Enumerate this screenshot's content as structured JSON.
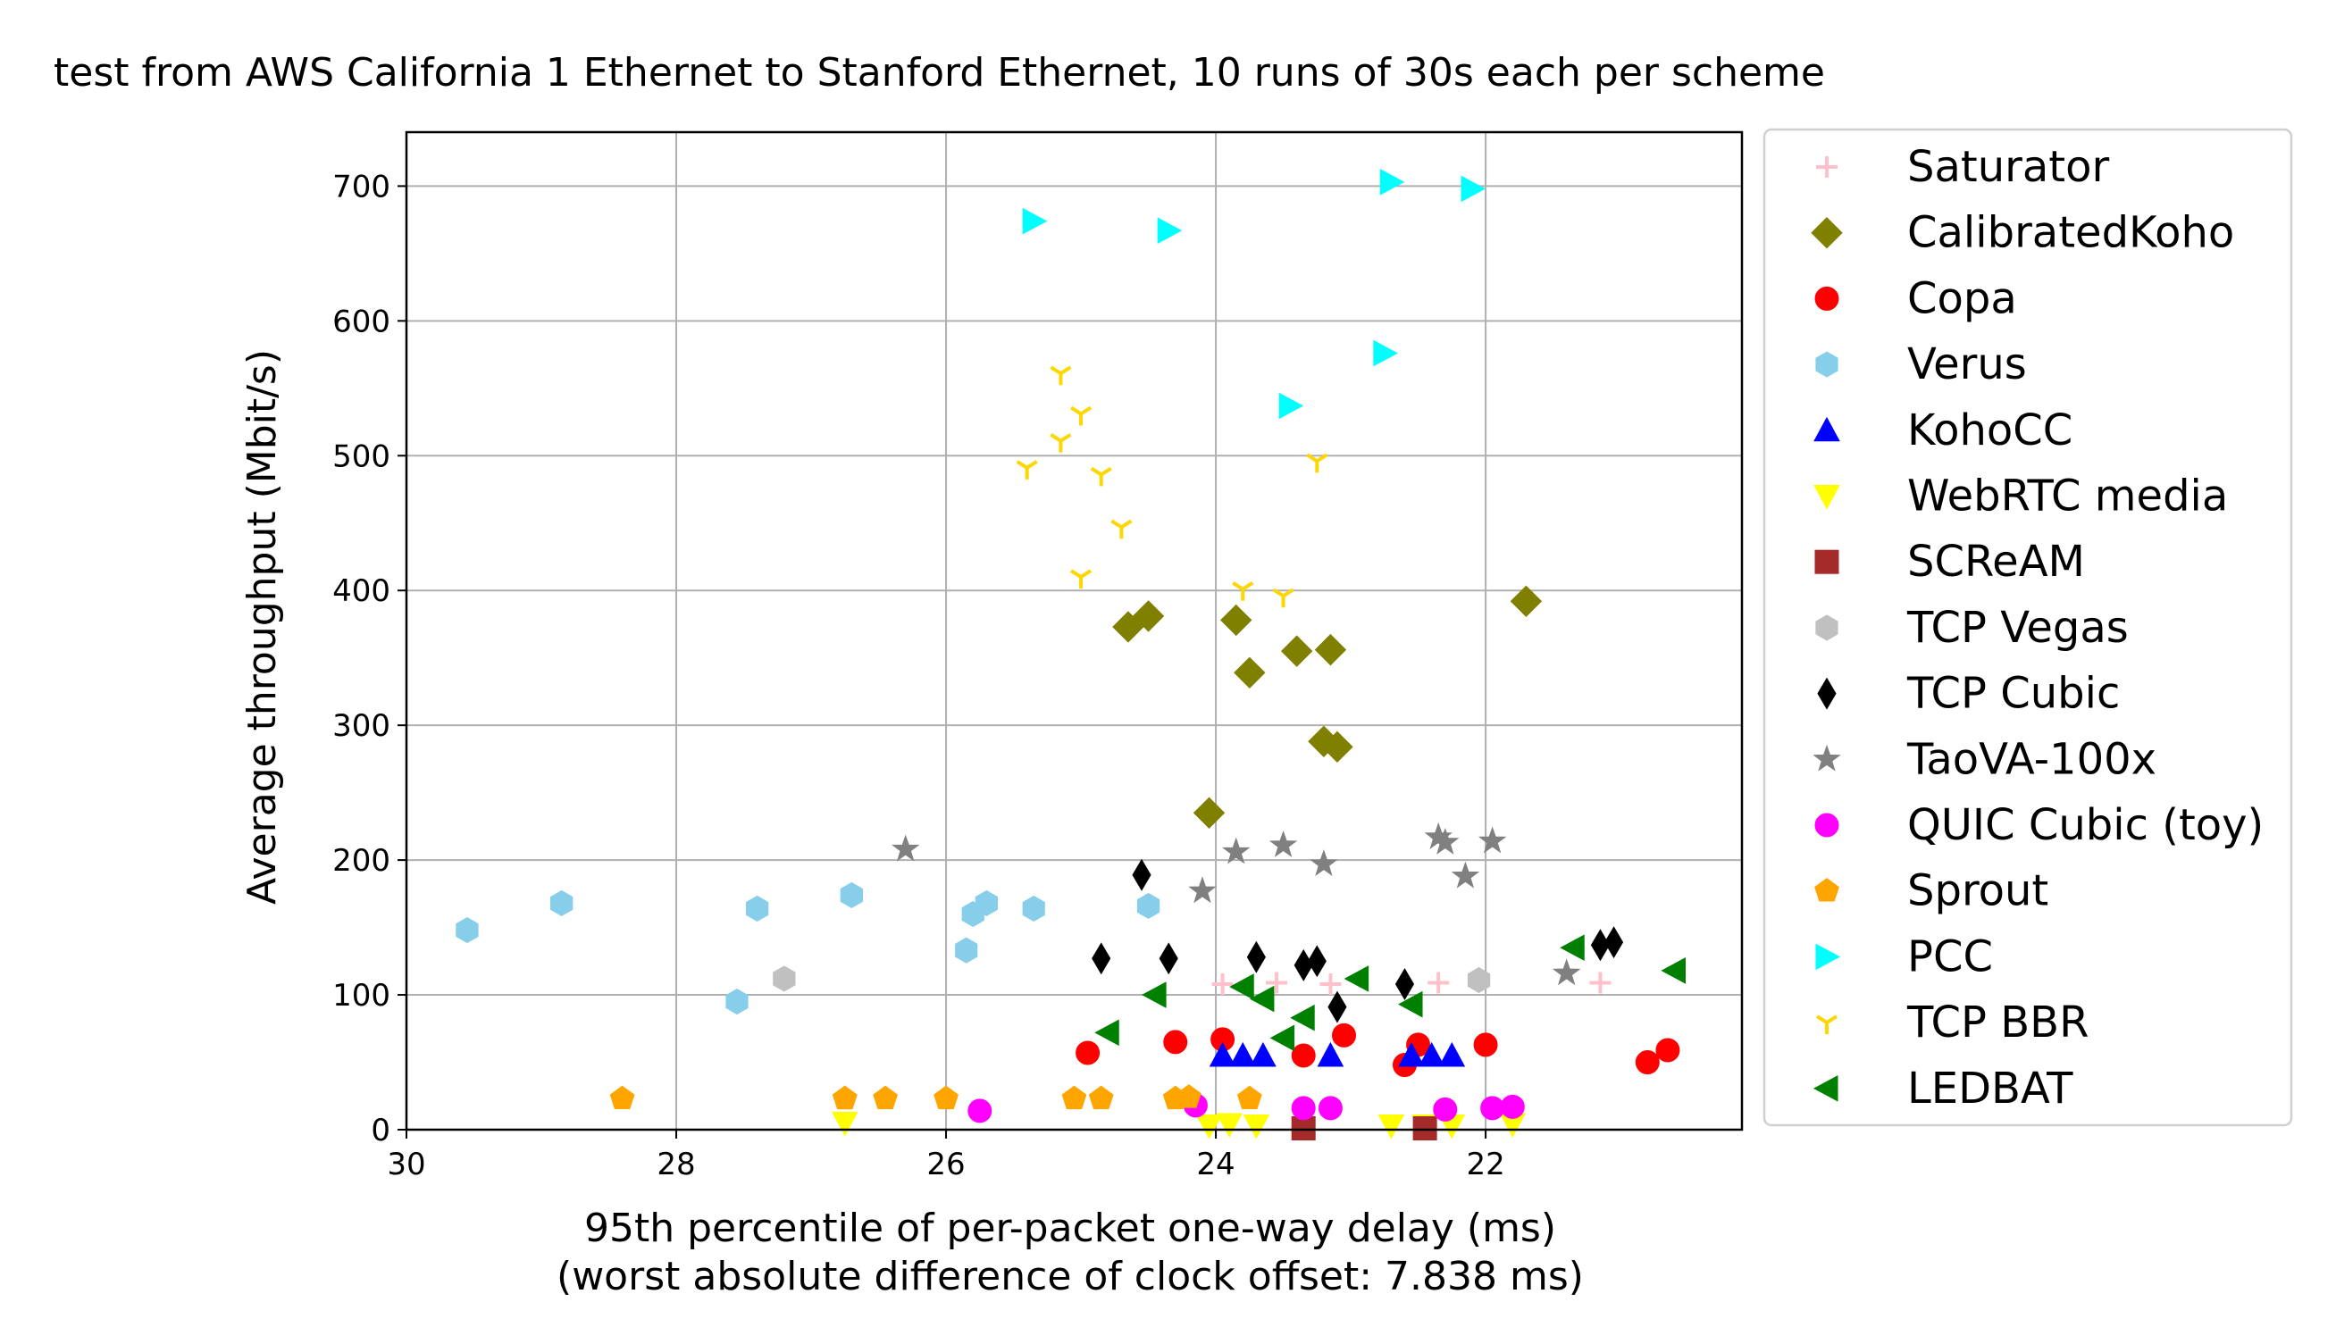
{
  "chart_data": {
    "type": "scatter",
    "title": "test from AWS California 1 Ethernet to Stanford Ethernet, 10 runs of 30s each per scheme",
    "xlabel": "95th percentile of per-packet one-way delay (ms)",
    "xlabel2": "(worst absolute difference of clock offset: 7.838 ms)",
    "ylabel": "Average throughput (Mbit/s)",
    "xlim": [
      30.0,
      20.1
    ],
    "ylim": [
      0,
      740
    ],
    "x_inverted": true,
    "grid": true,
    "legend_position": "outside-right",
    "x_ticks": [
      30,
      28,
      26,
      24,
      22
    ],
    "y_ticks": [
      0,
      100,
      200,
      300,
      400,
      500,
      600,
      700
    ],
    "series": [
      {
        "name": "Saturator",
        "marker": "plus",
        "color": "#ffc0cb",
        "points": [
          [
            23.95,
            108
          ],
          [
            23.55,
            109
          ],
          [
            23.15,
            108
          ],
          [
            22.35,
            109
          ],
          [
            21.15,
            109
          ]
        ]
      },
      {
        "name": "CalibratedKoho",
        "marker": "diamond",
        "color": "#808000",
        "points": [
          [
            24.65,
            373
          ],
          [
            24.5,
            381
          ],
          [
            23.85,
            378
          ],
          [
            23.75,
            339
          ],
          [
            23.4,
            355
          ],
          [
            23.15,
            356
          ],
          [
            23.2,
            288
          ],
          [
            23.1,
            284
          ],
          [
            24.05,
            235
          ],
          [
            21.7,
            392
          ]
        ]
      },
      {
        "name": "Copa",
        "marker": "circle",
        "color": "#ff0000",
        "points": [
          [
            24.95,
            57
          ],
          [
            24.3,
            65
          ],
          [
            23.95,
            67
          ],
          [
            23.35,
            55
          ],
          [
            23.05,
            70
          ],
          [
            22.6,
            48
          ],
          [
            22.5,
            63
          ],
          [
            22.0,
            63
          ],
          [
            20.8,
            50
          ],
          [
            20.65,
            59
          ]
        ]
      },
      {
        "name": "Verus",
        "marker": "hexagon",
        "color": "#87ceeb",
        "points": [
          [
            29.55,
            148
          ],
          [
            28.85,
            168
          ],
          [
            27.55,
            95
          ],
          [
            27.4,
            164
          ],
          [
            26.7,
            174
          ],
          [
            25.85,
            133
          ],
          [
            25.8,
            160
          ],
          [
            25.7,
            168
          ],
          [
            25.35,
            164
          ],
          [
            24.5,
            166
          ]
        ]
      },
      {
        "name": "KohoCC",
        "marker": "triangle-up",
        "color": "#0000ff",
        "points": [
          [
            23.95,
            55
          ],
          [
            23.8,
            55
          ],
          [
            23.65,
            55
          ],
          [
            23.15,
            55
          ],
          [
            22.55,
            55
          ],
          [
            22.4,
            55
          ],
          [
            22.25,
            55
          ]
        ]
      },
      {
        "name": "WebRTC media",
        "marker": "triangle-down",
        "color": "#ffff00",
        "points": [
          [
            26.75,
            5
          ],
          [
            24.05,
            3
          ],
          [
            23.9,
            4
          ],
          [
            23.7,
            3
          ],
          [
            22.7,
            3
          ],
          [
            22.45,
            3
          ],
          [
            22.25,
            3
          ],
          [
            21.8,
            4
          ]
        ]
      },
      {
        "name": "SCReAM",
        "marker": "square",
        "color": "#a52a2a",
        "points": [
          [
            23.35,
            1
          ],
          [
            22.45,
            1
          ]
        ]
      },
      {
        "name": "TCP Vegas",
        "marker": "hexagon",
        "color": "#c0c0c0",
        "points": [
          [
            27.2,
            112
          ],
          [
            22.05,
            111
          ]
        ]
      },
      {
        "name": "TCP Cubic",
        "marker": "thin-diamond",
        "color": "#000000",
        "points": [
          [
            24.85,
            127
          ],
          [
            24.55,
            189
          ],
          [
            24.35,
            127
          ],
          [
            23.7,
            128
          ],
          [
            23.35,
            122
          ],
          [
            23.25,
            125
          ],
          [
            23.1,
            91
          ],
          [
            22.6,
            108
          ],
          [
            21.15,
            137
          ],
          [
            21.05,
            139
          ]
        ]
      },
      {
        "name": "TaoVA-100x",
        "marker": "star",
        "color": "#808080",
        "points": [
          [
            26.3,
            208
          ],
          [
            24.1,
            177
          ],
          [
            23.85,
            206
          ],
          [
            23.5,
            211
          ],
          [
            23.2,
            197
          ],
          [
            22.35,
            217
          ],
          [
            22.3,
            213
          ],
          [
            22.15,
            188
          ],
          [
            21.95,
            214
          ],
          [
            21.4,
            116
          ]
        ]
      },
      {
        "name": "QUIC Cubic (toy)",
        "marker": "circle",
        "color": "#ff00ff",
        "points": [
          [
            25.75,
            14
          ],
          [
            24.15,
            18
          ],
          [
            23.35,
            16
          ],
          [
            23.15,
            16
          ],
          [
            22.3,
            15
          ],
          [
            21.95,
            16
          ],
          [
            21.8,
            17
          ]
        ]
      },
      {
        "name": "Sprout",
        "marker": "pentagon",
        "color": "#ffa500",
        "points": [
          [
            28.4,
            23
          ],
          [
            26.75,
            23
          ],
          [
            26.75,
            23
          ],
          [
            26.45,
            23
          ],
          [
            26.0,
            23
          ],
          [
            25.05,
            23
          ],
          [
            24.85,
            23
          ],
          [
            24.3,
            23
          ],
          [
            24.2,
            24
          ],
          [
            23.75,
            23
          ]
        ]
      },
      {
        "name": "PCC",
        "marker": "triangle-right",
        "color": "#00ffff",
        "points": [
          [
            25.35,
            674
          ],
          [
            24.35,
            667
          ],
          [
            23.45,
            537
          ],
          [
            22.75,
            576
          ],
          [
            22.7,
            703
          ],
          [
            22.1,
            698
          ]
        ]
      },
      {
        "name": "TCP BBR",
        "marker": "tri-down",
        "color": "#ffd700",
        "points": [
          [
            25.15,
            561
          ],
          [
            25.0,
            531
          ],
          [
            25.15,
            511
          ],
          [
            24.85,
            486
          ],
          [
            25.4,
            491
          ],
          [
            24.7,
            447
          ],
          [
            25.0,
            410
          ],
          [
            23.8,
            401
          ],
          [
            23.5,
            396
          ],
          [
            23.25,
            496
          ]
        ]
      },
      {
        "name": "LEDBAT",
        "marker": "triangle-left",
        "color": "#008000",
        "points": [
          [
            24.8,
            72
          ],
          [
            24.45,
            100
          ],
          [
            23.8,
            106
          ],
          [
            23.65,
            97
          ],
          [
            23.5,
            68
          ],
          [
            23.35,
            83
          ],
          [
            22.95,
            112
          ],
          [
            22.55,
            93
          ],
          [
            21.35,
            135
          ],
          [
            20.6,
            118
          ]
        ]
      }
    ]
  }
}
